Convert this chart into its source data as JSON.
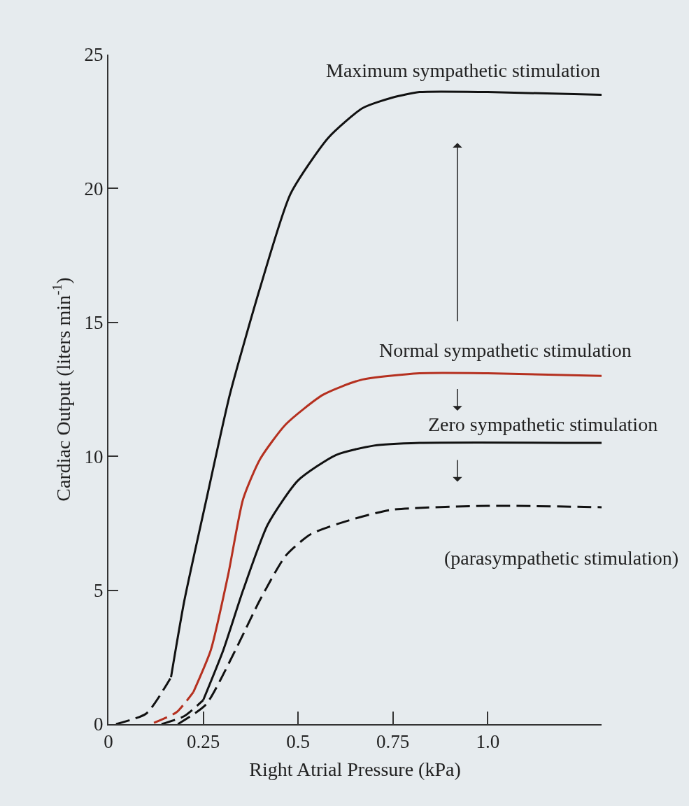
{
  "chart_data": {
    "type": "line",
    "xlabel": "Right Atrial Pressure (kPa)",
    "ylabel": "Cardiac Output (liters min$^{-1}$)",
    "xlim": [
      0,
      1.3
    ],
    "xticks": [
      0,
      0.25,
      0.5,
      0.75,
      {
        "value": 1,
        "label": "1.0"
      }
    ],
    "ylim": [
      0,
      25
    ],
    "yticks": [
      0,
      5,
      10,
      15,
      20,
      25
    ],
    "grid": false,
    "legend": false,
    "marker": "none",
    "series": [
      {
        "color": "#111111",
        "line_style": "dashed",
        "x": [
          0.02,
          0.1,
          0.165
        ],
        "values": [
          0,
          0.4,
          1.75
        ]
      },
      {
        "name": "Maximum sympathetic stimulation",
        "color": "#111111",
        "line_style": "solid",
        "x": [
          0.165,
          0.2,
          0.26,
          0.32,
          0.4,
          0.48,
          0.58,
          0.67,
          0.75,
          0.82,
          1.0,
          1.3
        ],
        "values": [
          1.75,
          4.6,
          8.5,
          12.3,
          16.3,
          19.8,
          21.9,
          23,
          23.4,
          23.6,
          23.6,
          23.5
        ]
      },
      {
        "color": "#b5301f",
        "line_style": "dashed",
        "x": [
          0.12,
          0.18,
          0.224
        ],
        "values": [
          0.05,
          0.45,
          1.2
        ]
      },
      {
        "name": "Normal sympathetic stimulation",
        "color": "#b5301f",
        "line_style": "solid",
        "x": [
          0.224,
          0.27,
          0.316,
          0.355,
          0.4,
          0.468,
          0.566,
          0.665,
          0.82,
          1.0,
          1.3
        ],
        "values": [
          1.2,
          2.77,
          5.6,
          8.4,
          9.9,
          11.2,
          12.3,
          12.85,
          13.1,
          13.1,
          13
        ]
      },
      {
        "color": "#111111",
        "line_style": "dashed",
        "x": [
          0.14,
          0.2,
          0.25
        ],
        "values": [
          0,
          0.3,
          0.9
        ]
      },
      {
        "name": "Zero sympathetic stimulation",
        "color": "#111111",
        "line_style": "solid",
        "x": [
          0.25,
          0.303,
          0.355,
          0.42,
          0.5,
          0.6,
          0.7,
          0.82,
          1.3
        ],
        "values": [
          0.9,
          2.77,
          5,
          7.45,
          9.1,
          10.05,
          10.4,
          10.5,
          10.5
        ]
      },
      {
        "name": "(parasympathetic stimulation)",
        "color": "#111111",
        "line_style": "dashed",
        "x": [
          0.183,
          0.257,
          0.335,
          0.4,
          0.468,
          0.534,
          0.632,
          0.745,
          1.0,
          1.3
        ],
        "values": [
          0,
          0.73,
          2.77,
          4.65,
          6.3,
          7.1,
          7.6,
          8,
          8.15,
          8.1
        ]
      }
    ]
  }
}
